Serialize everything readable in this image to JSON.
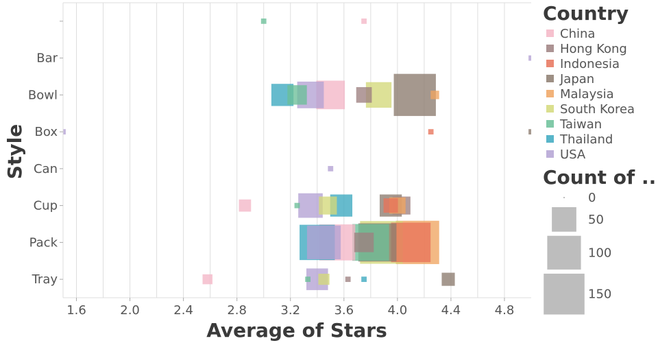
{
  "chart_data": {
    "type": "scatter",
    "mark": "square",
    "xlabel": "Average of Stars",
    "ylabel": "Style",
    "xlim": [
      1.5,
      5.0
    ],
    "x_ticks": [
      "1.6",
      "2.0",
      "2.4",
      "2.8",
      "3.2",
      "3.6",
      "4.0",
      "4.4",
      "4.8"
    ],
    "categories": [
      "",
      "Bar",
      "Bowl",
      "Box",
      "Can",
      "Cup",
      "Pack",
      "Tray"
    ],
    "color_legend": {
      "title": "Country",
      "entries": [
        {
          "name": "China",
          "color": "#F4B6C6"
        },
        {
          "name": "Hong Kong",
          "color": "#9E8080"
        },
        {
          "name": "Indonesia",
          "color": "#E8735A"
        },
        {
          "name": "Japan",
          "color": "#8C7B6E"
        },
        {
          "name": "Malaysia",
          "color": "#F0A561"
        },
        {
          "name": "South Korea",
          "color": "#D4D97A"
        },
        {
          "name": "Taiwan",
          "color": "#6BBF99"
        },
        {
          "name": "Thailand",
          "color": "#3BA8BF"
        },
        {
          "name": "USA",
          "color": "#B3A2D3"
        }
      ]
    },
    "size_legend": {
      "title": "Count of ...",
      "entries": [
        {
          "label": "0",
          "value": 0
        },
        {
          "label": "50",
          "value": 50
        },
        {
          "label": "100",
          "value": 100
        },
        {
          "label": "150",
          "value": 150
        }
      ]
    },
    "series": [
      {
        "name": "China",
        "points": [
          {
            "style": "",
            "x": 3.75,
            "count": 1
          },
          {
            "style": "Bowl",
            "x": 3.5,
            "count": 70
          },
          {
            "style": "Cup",
            "x": 2.86,
            "count": 10
          },
          {
            "style": "Pack",
            "x": 3.55,
            "count": 115
          },
          {
            "style": "Tray",
            "x": 2.58,
            "count": 6
          }
        ]
      },
      {
        "name": "Hong Kong",
        "points": [
          {
            "style": "Bowl",
            "x": 3.75,
            "count": 18
          },
          {
            "style": "Cup",
            "x": 4.03,
            "count": 25
          },
          {
            "style": "Pack",
            "x": 3.75,
            "count": 30
          },
          {
            "style": "Tray",
            "x": 3.63,
            "count": 1
          }
        ]
      },
      {
        "name": "Indonesia",
        "points": [
          {
            "style": "Box",
            "x": 4.25,
            "count": 1
          },
          {
            "style": "Cup",
            "x": 3.95,
            "count": 15
          },
          {
            "style": "Pack",
            "x": 4.1,
            "count": 140
          }
        ]
      },
      {
        "name": "Japan",
        "points": [
          {
            "style": "Bowl",
            "x": 4.13,
            "count": 160
          },
          {
            "style": "Box",
            "x": 5.0,
            "count": 1
          },
          {
            "style": "Cup",
            "x": 3.95,
            "count": 40
          },
          {
            "style": "Pack",
            "x": 3.85,
            "count": 130
          },
          {
            "style": "Tray",
            "x": 4.38,
            "count": 12
          }
        ]
      },
      {
        "name": "Malaysia",
        "points": [
          {
            "style": "Bowl",
            "x": 4.28,
            "count": 4
          },
          {
            "style": "Cup",
            "x": 4.0,
            "count": 20
          },
          {
            "style": "Pack",
            "x": 4.15,
            "count": 170
          }
        ]
      },
      {
        "name": "South Korea",
        "points": [
          {
            "style": "Bowl",
            "x": 3.86,
            "count": 55
          },
          {
            "style": "Cup",
            "x": 3.48,
            "count": 25
          },
          {
            "style": "Pack",
            "x": 3.88,
            "count": 165
          },
          {
            "style": "Tray",
            "x": 3.45,
            "count": 8
          }
        ]
      },
      {
        "name": "Taiwan",
        "points": [
          {
            "style": "",
            "x": 3.0,
            "count": 1
          },
          {
            "style": "Bowl",
            "x": 3.25,
            "count": 30
          },
          {
            "style": "Cup",
            "x": 3.25,
            "count": 1
          },
          {
            "style": "Pack",
            "x": 3.8,
            "count": 120
          },
          {
            "style": "Tray",
            "x": 3.33,
            "count": 1
          }
        ]
      },
      {
        "name": "Thailand",
        "points": [
          {
            "style": "Bowl",
            "x": 3.14,
            "count": 40
          },
          {
            "style": "Cup",
            "x": 3.58,
            "count": 40
          },
          {
            "style": "Pack",
            "x": 3.4,
            "count": 110
          },
          {
            "style": "Tray",
            "x": 3.75,
            "count": 1
          }
        ]
      },
      {
        "name": "USA",
        "points": [
          {
            "style": "Bar",
            "x": 5.0,
            "count": 1
          },
          {
            "style": "Bowl",
            "x": 3.35,
            "count": 60
          },
          {
            "style": "Box",
            "x": 1.5,
            "count": 1
          },
          {
            "style": "Can",
            "x": 3.5,
            "count": 1
          },
          {
            "style": "Cup",
            "x": 3.35,
            "count": 50
          },
          {
            "style": "Pack",
            "x": 3.45,
            "count": 100
          },
          {
            "style": "Tray",
            "x": 3.4,
            "count": 38
          }
        ]
      }
    ]
  }
}
